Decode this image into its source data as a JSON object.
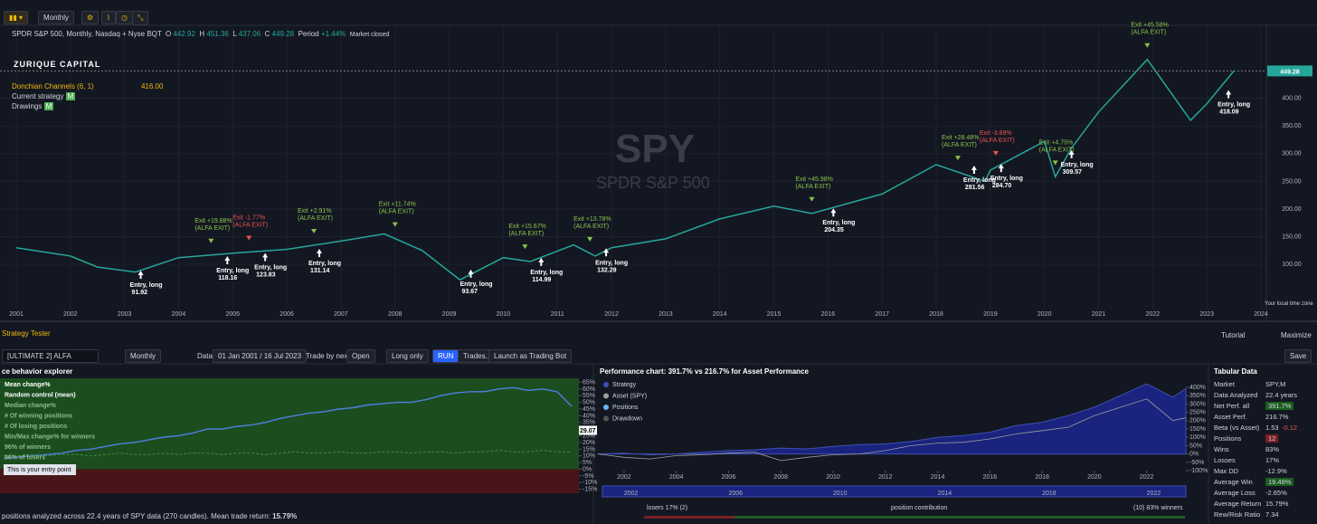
{
  "toolbar": {
    "interval": "Monthly"
  },
  "header": {
    "symbol": "SPDR S&P 500, Monthly, Nasdaq + Nyse BQT",
    "open_label": "O",
    "open": "442.92",
    "high_label": "H",
    "high": "451.36",
    "low_label": "L",
    "low": "437.06",
    "close_label": "C",
    "close": "449.28",
    "period_label": "Period",
    "period": "+1.44%",
    "status": "Market closed"
  },
  "brand": "ZURIQUE CAPITAL",
  "indicators": {
    "donchian": "Donchian Channels (6, 1)",
    "donchian_value": "416.00",
    "strategy": "Current strategy",
    "drawings": "Drawings",
    "badge": "M"
  },
  "watermark": {
    "ticker": "SPY",
    "name": "SPDR S&P 500"
  },
  "timezone": "Your local time zone",
  "chart_data": [
    {
      "type": "line",
      "color": "#26a69a",
      "x": [
        2001,
        2002,
        2002.5,
        2003.2,
        2004,
        2005,
        2006,
        2007,
        2007.8,
        2008.5,
        2009.2,
        2010,
        2010.5,
        2011.3,
        2011.7,
        2012,
        2013,
        2014,
        2015,
        2015.7,
        2016,
        2017,
        2018,
        2018.9,
        2019,
        2020,
        2020.2,
        2020.5,
        2021,
        2021.9,
        2022.7,
        2023,
        2023.5
      ],
      "values": [
        130,
        115,
        95,
        86,
        112,
        120,
        127,
        142,
        155,
        125,
        72,
        112,
        105,
        135,
        115,
        130,
        146,
        182,
        205,
        192,
        200,
        227,
        280,
        250,
        270,
        322,
        258,
        310,
        375,
        470,
        360,
        390,
        449.28
      ],
      "last_label": "449.28",
      "xlim": [
        2000.7,
        2024.1
      ],
      "ylim": [
        20,
        530
      ],
      "xticks": [
        2001,
        2002,
        2003,
        2004,
        2005,
        2006,
        2007,
        2008,
        2009,
        2010,
        2011,
        2012,
        2013,
        2014,
        2015,
        2016,
        2017,
        2018,
        2019,
        2020,
        2021,
        2022,
        2023,
        2024
      ],
      "yticks": [
        {
          "value": 100,
          "label": "100.00"
        },
        {
          "value": 150,
          "label": "150.00"
        },
        {
          "value": 200,
          "label": "200.00"
        },
        {
          "value": 250,
          "label": "250.00"
        },
        {
          "value": 300,
          "label": "300.00"
        },
        {
          "value": 350,
          "label": "350.00"
        },
        {
          "value": 400,
          "label": "400.00"
        }
      ],
      "entries": [
        {
          "label": "Entry, long",
          "price": 91.92,
          "x": 2003.3
        },
        {
          "label": "Entry, long",
          "price": 118.16,
          "x": 2004.9
        },
        {
          "label": "Entry, long",
          "price": 123.83,
          "x": 2005.6
        },
        {
          "label": "Entry, long",
          "price": 131.14,
          "x": 2006.6
        },
        {
          "label": "Entry, long",
          "price": 93.67,
          "x": 2009.4
        },
        {
          "label": "Entry, long",
          "price": 114.99,
          "x": 2010.7
        },
        {
          "label": "Entry, long",
          "price": 132.29,
          "x": 2011.9
        },
        {
          "label": "Entry, long",
          "price": 204.35,
          "x": 2016.1
        },
        {
          "label": "Entry, long",
          "price": 281.56,
          "x": 2018.7
        },
        {
          "label": "Entry, long",
          "price": 284.7,
          "price_label": "284.70",
          "x": 2019.2
        },
        {
          "label": "Entry, long",
          "price": 309.57,
          "x": 2020.5
        },
        {
          "label": "Entry, long",
          "price": 418.09,
          "x": 2023.4
        }
      ],
      "exits": [
        {
          "label": "Exit +19.88%",
          "tag": "(ALFA EXIT)",
          "x": 2004.6,
          "color": "#8bc34a"
        },
        {
          "label": "Exit -1.77%",
          "tag": "(ALFA EXIT)",
          "x": 2005.3,
          "color": "#ef5350"
        },
        {
          "label": "Exit +2.91%",
          "tag": "(ALFA EXIT)",
          "x": 2006.5,
          "color": "#8bc34a"
        },
        {
          "label": "Exit +11.74%",
          "tag": "(ALFA EXIT)",
          "x": 2008.0,
          "color": "#8bc34a"
        },
        {
          "label": "Exit +15.67%",
          "tag": "(ALFA EXIT)",
          "x": 2010.4,
          "color": "#8bc34a"
        },
        {
          "label": "Exit +13.78%",
          "tag": "(ALFA EXIT)",
          "x": 2011.6,
          "color": "#8bc34a"
        },
        {
          "label": "Exit +45.98%",
          "tag": "(ALFA EXIT)",
          "x": 2015.7,
          "color": "#8bc34a"
        },
        {
          "label": "Exit +28.48%",
          "tag": "(ALFA EXIT)",
          "x": 2018.4,
          "color": "#8bc34a"
        },
        {
          "label": "Exit -3.89%",
          "tag": "(ALFA EXIT)",
          "x": 2019.1,
          "color": "#ef5350"
        },
        {
          "label": "Exit +4.75%",
          "tag": "(ALFA EXIT)",
          "x": 2020.2,
          "color": "#8bc34a"
        },
        {
          "label": "Exit +45.58%",
          "tag": "(ALFA EXIT)",
          "x": 2021.9,
          "color": "#8bc34a"
        }
      ]
    },
    {
      "type": "line",
      "title": "ce behavior explorer",
      "series": [
        {
          "name": "Mean change%",
          "color": "#4f7fe0",
          "values": [
            8,
            9,
            10,
            11,
            12,
            14,
            15,
            17,
            19,
            20,
            22,
            24,
            25,
            27,
            30,
            30,
            32,
            33,
            35,
            38,
            40,
            42,
            43,
            45,
            46,
            48,
            49,
            50,
            50,
            52,
            55,
            57,
            58,
            58,
            60,
            61,
            59,
            60,
            58,
            47
          ]
        },
        {
          "name": "Random control (mean)",
          "color": "#3f8f3f",
          "values": [
            10,
            10,
            11,
            10,
            11,
            11,
            10,
            11,
            12,
            11,
            11,
            12,
            11,
            12,
            12,
            11,
            12,
            12,
            11,
            12,
            13,
            12,
            12,
            13,
            12,
            12,
            13,
            13,
            12,
            13,
            13,
            12,
            13,
            13,
            14,
            13,
            13,
            14,
            13,
            13
          ]
        }
      ],
      "legend_extra": [
        "Median change%",
        "# Of winning positions",
        "# Of losing positions",
        "Min/Max change% for winners",
        "96% of winners",
        "96% of losers"
      ],
      "marker": 29.07,
      "tooltip": "This is your entry point",
      "ylim": [
        -18,
        68
      ],
      "yticks": [
        {
          "value": 65,
          "label": "65%"
        },
        {
          "value": 60,
          "label": "60%"
        },
        {
          "value": 55,
          "label": "55%"
        },
        {
          "value": 50,
          "label": "50%"
        },
        {
          "value": 45,
          "label": "45%"
        },
        {
          "value": 40,
          "label": "40%"
        },
        {
          "value": 35,
          "label": "35%"
        },
        {
          "value": 30,
          "label": "30%"
        },
        {
          "value": 25,
          "label": "25%"
        },
        {
          "value": 20,
          "label": "20%"
        },
        {
          "value": 15,
          "label": "15%"
        },
        {
          "value": 10,
          "label": "10%"
        },
        {
          "value": 5,
          "label": "5%"
        },
        {
          "value": 0,
          "label": "0%"
        },
        {
          "value": -5,
          "label": "-5%"
        },
        {
          "value": -10,
          "label": "-10%"
        },
        {
          "value": -15,
          "label": "-15%"
        }
      ],
      "footer": "positions analyzed across 22.4 years of SPY data (270 candles). Mean trade return:",
      "footer_value": "15.79%"
    },
    {
      "type": "area",
      "title": "Performance chart: 391.7% vs 216.7% for Asset Performance",
      "x": [
        2001,
        2002,
        2003,
        2004,
        2005,
        2006,
        2007,
        2008,
        2009,
        2010,
        2011,
        2012,
        2013,
        2014,
        2015,
        2016,
        2017,
        2018,
        2019,
        2020,
        2021,
        2022,
        2023,
        2023.5
      ],
      "series": [
        {
          "name": "Strategy",
          "color": "#3f51b5",
          "values": [
            0,
            5,
            -5,
            0,
            10,
            20,
            25,
            35,
            30,
            45,
            55,
            60,
            75,
            100,
            110,
            130,
            170,
            190,
            230,
            280,
            350,
            420,
            340,
            391.7
          ]
        },
        {
          "name": "Asset (SPY)",
          "color": "#9e9e9e",
          "values": [
            0,
            -20,
            -30,
            -10,
            -5,
            5,
            10,
            -40,
            -20,
            -5,
            0,
            20,
            50,
            65,
            70,
            90,
            120,
            140,
            160,
            230,
            280,
            330,
            200,
            216.7
          ]
        }
      ],
      "legend_extra": [
        "Positions",
        "Drawdown"
      ],
      "xlim": [
        2001,
        2023.5
      ],
      "ylim": [
        -100,
        470
      ],
      "xticks": [
        2002,
        2004,
        2006,
        2008,
        2010,
        2012,
        2014,
        2016,
        2018,
        2020,
        2022
      ],
      "yticks": [
        {
          "value": 400,
          "label": "400%"
        },
        {
          "value": 350,
          "label": "350%"
        },
        {
          "value": 300,
          "label": "300%"
        },
        {
          "value": 250,
          "label": "250%"
        },
        {
          "value": 200,
          "label": "200%"
        },
        {
          "value": 150,
          "label": "150%"
        },
        {
          "value": 100,
          "label": "100%"
        },
        {
          "value": 50,
          "label": "50%"
        },
        {
          "value": 0,
          "label": "0%"
        },
        {
          "value": -50,
          "label": "-50%"
        },
        {
          "value": -100,
          "label": "-100%"
        }
      ],
      "navigator": [
        2002,
        2006,
        2010,
        2014,
        2018,
        2022
      ],
      "losers": "losers 17% (2)",
      "contribution": "position contribution",
      "winners": "(10) 83% winners"
    }
  ],
  "tester": {
    "title": "Strategy Tester",
    "strategy": "[ULTIMATE 2] ALFA",
    "interval": "Monthly",
    "data_label": "Data",
    "range": "01 Jan 2001 / 16 Jul 2023",
    "trade_label": "Trade by next",
    "trade": "Open",
    "mode": "Long only",
    "run": "RUN",
    "trades": "Trades...",
    "launch": "Launch as Trading Bot",
    "tutorial": "Tutorial",
    "maximize": "Maximize",
    "save": "Save"
  },
  "tabular": {
    "title": "Tabular Data",
    "rows": [
      [
        "Market",
        "SPY,M"
      ],
      [
        "Data Analyzed",
        "22.4 years"
      ],
      [
        "Net Perf. all",
        "391.7%"
      ],
      [
        "Asset Perf.",
        "216.7%"
      ],
      [
        "Beta (vs Asset)",
        "1.53",
        "-0.12"
      ],
      [
        "Positions",
        "12"
      ],
      [
        "Wins",
        "83%"
      ],
      [
        "Losses",
        "17%"
      ],
      [
        "Max DD",
        "-12.9%"
      ],
      [
        "Average Win",
        "19.48%"
      ],
      [
        "Average Loss",
        "-2.65%"
      ],
      [
        "Average Return",
        "15.79%"
      ],
      [
        "Rew/Risk Ratio",
        "7.34"
      ]
    ]
  }
}
